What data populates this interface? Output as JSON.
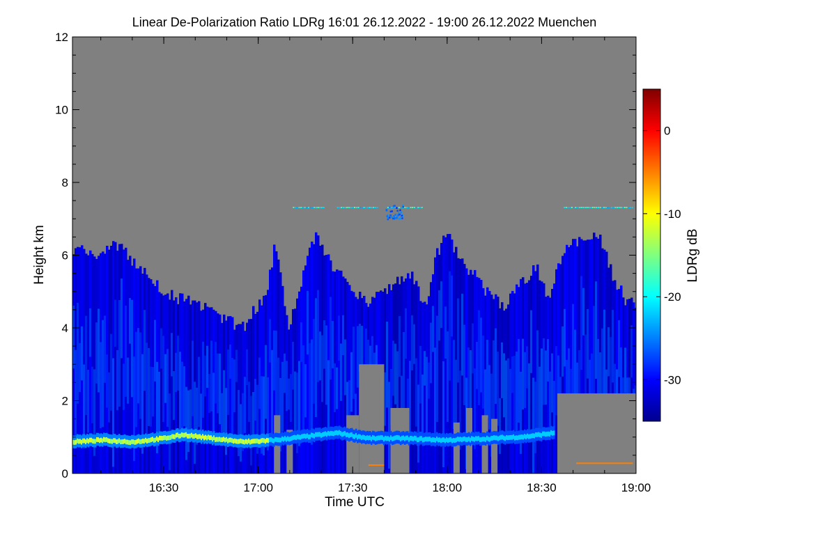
{
  "chart_data": {
    "type": "heatmap",
    "title": "Linear De-Polarization Ratio LDRg   16:01 26.12.2022 - 19:00 26.12.2022 Muenchen",
    "xlabel": "Time UTC",
    "ylabel": "Height km",
    "x_range_min": [
      961,
      1140
    ],
    "ylim": [
      0,
      12
    ],
    "x_ticks": [
      {
        "min": 990,
        "label": "16:30"
      },
      {
        "min": 1020,
        "label": "17:00"
      },
      {
        "min": 1050,
        "label": "17:30"
      },
      {
        "min": 1080,
        "label": "18:00"
      },
      {
        "min": 1110,
        "label": "18:30"
      },
      {
        "min": 1140,
        "label": "19:00"
      }
    ],
    "y_ticks": [
      0,
      2,
      4,
      6,
      8,
      10,
      12
    ],
    "colorbar": {
      "label": "LDRg dB",
      "range": [
        -35,
        5
      ],
      "ticks": [
        0,
        -10,
        -20,
        -30
      ],
      "colormap": "jet"
    },
    "no_data_color": "#808080",
    "features": {
      "cloud_top_km": [
        {
          "min": 961,
          "top": 6.2
        },
        {
          "min": 968,
          "top": 6.0
        },
        {
          "min": 975,
          "top": 6.3
        },
        {
          "min": 980,
          "top": 5.8
        },
        {
          "min": 986,
          "top": 5.3
        },
        {
          "min": 992,
          "top": 4.9
        },
        {
          "min": 998,
          "top": 4.7
        },
        {
          "min": 1004,
          "top": 4.5
        },
        {
          "min": 1010,
          "top": 4.2
        },
        {
          "min": 1015,
          "top": 4.0
        },
        {
          "min": 1018,
          "top": 4.5
        },
        {
          "min": 1022,
          "top": 4.8
        },
        {
          "min": 1025,
          "top": 6.3
        },
        {
          "min": 1027,
          "top": 5.5
        },
        {
          "min": 1029,
          "top": 4.0
        },
        {
          "min": 1032,
          "top": 4.7
        },
        {
          "min": 1036,
          "top": 6.2
        },
        {
          "min": 1038,
          "top": 6.5
        },
        {
          "min": 1041,
          "top": 6.0
        },
        {
          "min": 1046,
          "top": 5.4
        },
        {
          "min": 1050,
          "top": 5.0
        },
        {
          "min": 1055,
          "top": 4.7
        },
        {
          "min": 1062,
          "top": 5.2
        },
        {
          "min": 1068,
          "top": 5.5
        },
        {
          "min": 1073,
          "top": 4.5
        },
        {
          "min": 1076,
          "top": 6.0
        },
        {
          "min": 1080,
          "top": 6.6
        },
        {
          "min": 1084,
          "top": 5.8
        },
        {
          "min": 1088,
          "top": 5.5
        },
        {
          "min": 1092,
          "top": 5.0
        },
        {
          "min": 1098,
          "top": 4.6
        },
        {
          "min": 1104,
          "top": 5.3
        },
        {
          "min": 1108,
          "top": 5.7
        },
        {
          "min": 1112,
          "top": 4.8
        },
        {
          "min": 1115,
          "top": 5.8
        },
        {
          "min": 1118,
          "top": 6.3
        },
        {
          "min": 1124,
          "top": 6.4
        },
        {
          "min": 1128,
          "top": 6.5
        },
        {
          "min": 1132,
          "top": 5.5
        },
        {
          "min": 1136,
          "top": 4.8
        },
        {
          "min": 1140,
          "top": 4.6
        }
      ],
      "melting_layer_km": [
        {
          "min": 961,
          "h": 0.85
        },
        {
          "min": 970,
          "h": 0.9
        },
        {
          "min": 980,
          "h": 0.85
        },
        {
          "min": 990,
          "h": 0.95
        },
        {
          "min": 996,
          "h": 1.05
        },
        {
          "min": 1005,
          "h": 0.95
        },
        {
          "min": 1015,
          "h": 0.85
        },
        {
          "min": 1025,
          "h": 0.9
        },
        {
          "min": 1035,
          "h": 1.0
        },
        {
          "min": 1045,
          "h": 1.1
        },
        {
          "min": 1055,
          "h": 0.95
        },
        {
          "min": 1065,
          "h": 0.95
        },
        {
          "min": 1080,
          "h": 0.9
        },
        {
          "min": 1095,
          "h": 0.95
        },
        {
          "min": 1105,
          "h": 1.0
        },
        {
          "min": 1114,
          "h": 1.1
        }
      ],
      "lower_gaps": [
        {
          "from": 1025,
          "to": 1027,
          "top": 1.6
        },
        {
          "from": 1029,
          "to": 1031,
          "top": 1.2
        },
        {
          "from": 1048,
          "to": 1052,
          "top": 1.6
        },
        {
          "from": 1052,
          "to": 1060,
          "top": 3.0
        },
        {
          "from": 1062,
          "to": 1068,
          "top": 1.8
        },
        {
          "from": 1082,
          "to": 1084,
          "top": 1.4
        },
        {
          "from": 1086,
          "to": 1088,
          "top": 1.8
        },
        {
          "from": 1091,
          "to": 1093,
          "top": 1.6
        },
        {
          "from": 1094,
          "to": 1096,
          "top": 1.5
        },
        {
          "from": 1115,
          "to": 1140,
          "top": 2.2
        }
      ],
      "aerosol_layer_km": 7.3
    }
  }
}
